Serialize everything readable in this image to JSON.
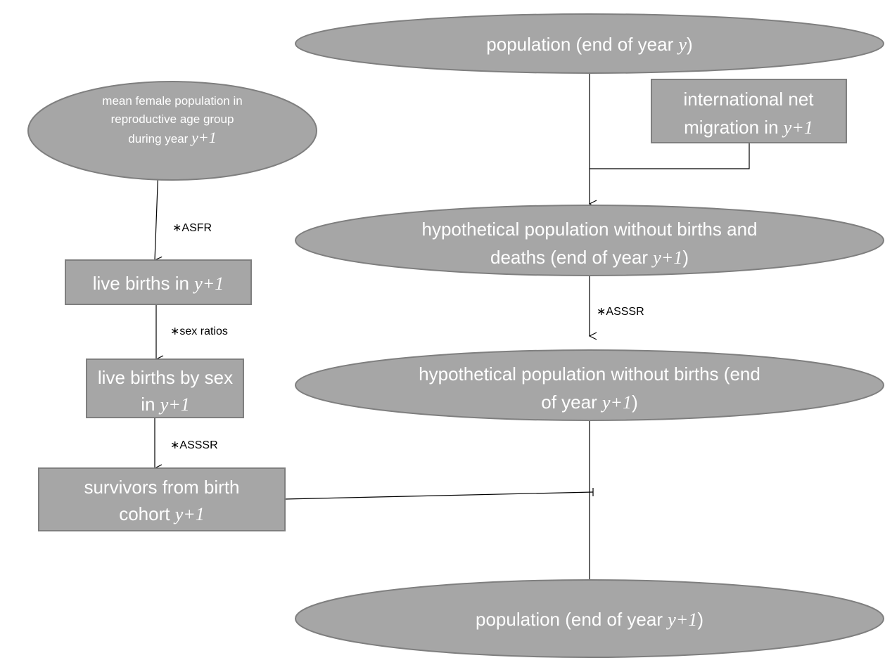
{
  "nodes": [
    {
      "lines": [
        [
          "population (end of year ",
          "y",
          ")"
        ]
      ]
    },
    {
      "lines": [
        [
          "international net"
        ],
        [
          "migration in ",
          "y+1"
        ]
      ]
    },
    {
      "lines": [
        [
          "mean female population in"
        ],
        [
          "reproductive age group"
        ],
        [
          "during year ",
          "y+1"
        ]
      ]
    },
    {
      "lines": [
        [
          "hypothetical population without births and"
        ],
        [
          "deaths (end of year ",
          "y+1",
          ")"
        ]
      ]
    },
    {
      "lines": [
        [
          "live births in ",
          "y+1"
        ]
      ]
    },
    {
      "lines": [
        [
          "hypothetical population without births (end"
        ],
        [
          "of year ",
          "y+1",
          ")"
        ]
      ]
    },
    {
      "lines": [
        [
          "live births by sex"
        ],
        [
          "in ",
          "y+1"
        ]
      ]
    },
    {
      "lines": [
        [
          "survivors from birth"
        ],
        [
          "cohort ",
          "y+1"
        ]
      ]
    },
    {
      "lines": [
        [
          "population (end of year ",
          "y+1",
          ")"
        ]
      ]
    }
  ],
  "edge_labels": [
    "∗ASFR",
    "∗sex ratios",
    "∗ASSSR",
    "∗ASSSR"
  ]
}
